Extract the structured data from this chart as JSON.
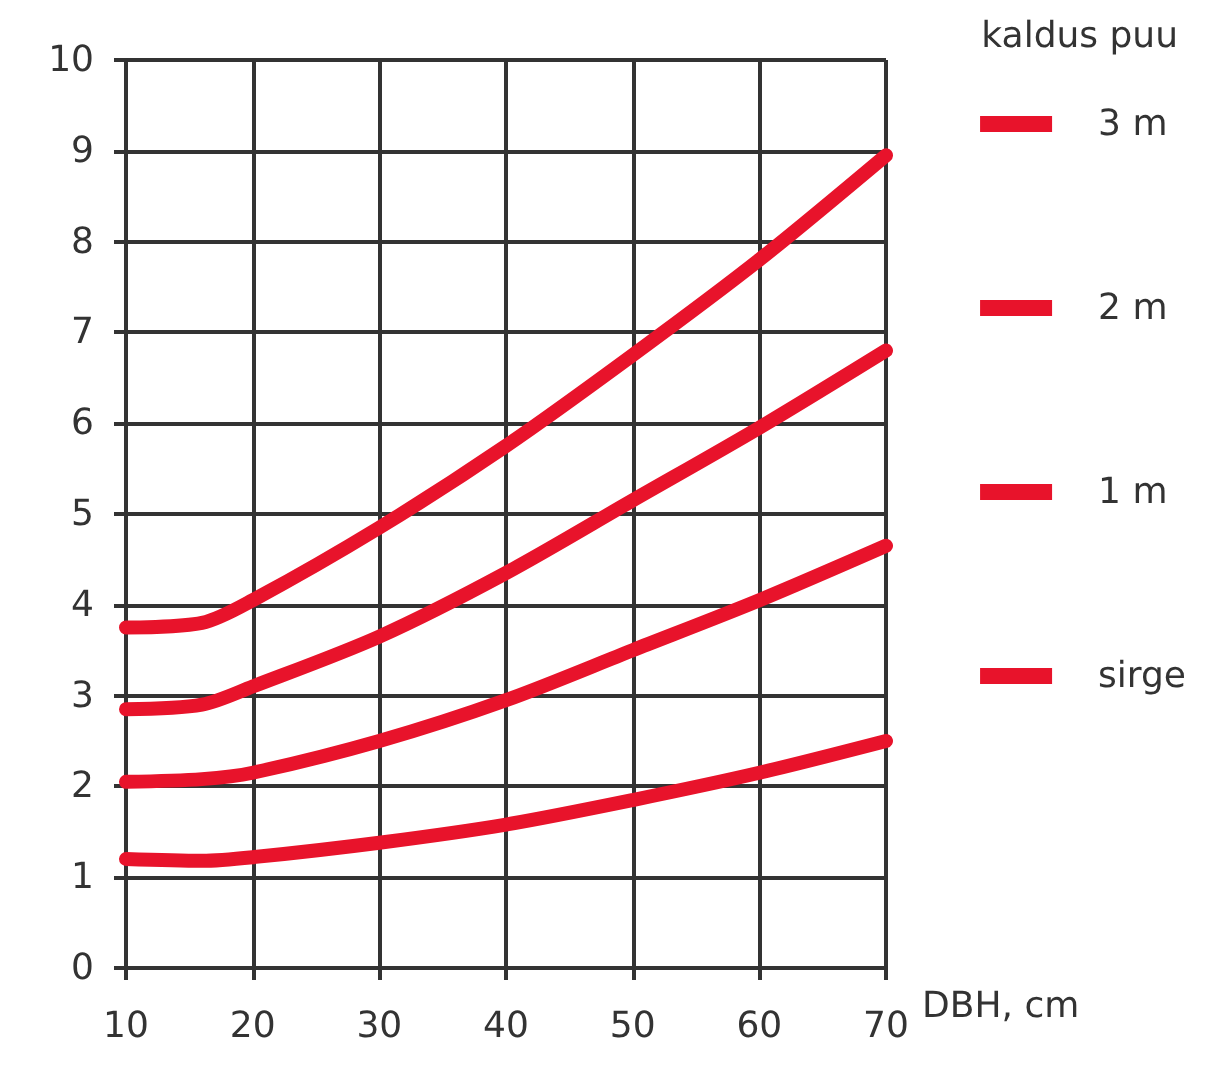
{
  "chart_data": {
    "type": "line",
    "xlabel": "DBH, cm",
    "legend_title": "kaldus puu",
    "x": [
      10,
      16,
      20,
      30,
      40,
      50,
      60,
      70
    ],
    "series": [
      {
        "name": "3 m",
        "color": "#e8132b",
        "values": [
          3.75,
          3.8,
          4.05,
          4.85,
          5.75,
          6.75,
          7.8,
          8.95
        ]
      },
      {
        "name": "2 m",
        "color": "#e8132b",
        "values": [
          2.85,
          2.9,
          3.1,
          3.65,
          4.35,
          5.15,
          5.95,
          6.8
        ]
      },
      {
        "name": "1 m",
        "color": "#e8132b",
        "values": [
          2.05,
          2.08,
          2.15,
          2.5,
          2.95,
          3.5,
          4.05,
          4.65
        ]
      },
      {
        "name": "sirge",
        "color": "#e8132b",
        "values": [
          1.2,
          1.18,
          1.22,
          1.38,
          1.58,
          1.85,
          2.15,
          2.5
        ]
      }
    ],
    "xlim": [
      10,
      70
    ],
    "xticks": [
      10,
      20,
      30,
      40,
      50,
      60,
      70
    ],
    "ylim": [
      0,
      10
    ],
    "yticks": [
      0,
      1,
      2,
      3,
      4,
      5,
      6,
      7,
      8,
      9,
      10
    ],
    "grid": true,
    "legend": "right",
    "line_style": "solid"
  }
}
